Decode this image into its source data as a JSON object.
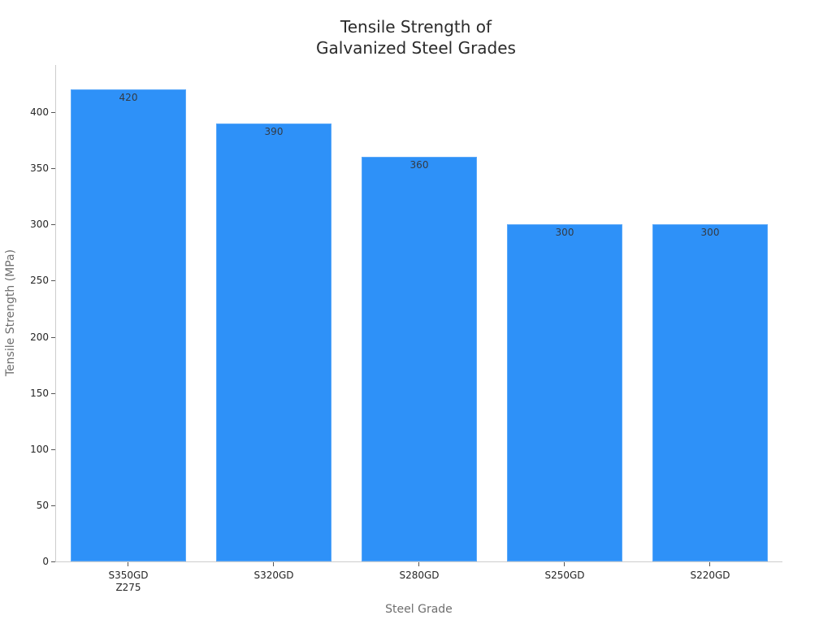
{
  "chart_data": {
    "type": "bar",
    "title": "Tensile Strength of Galvanized Steel Grades",
    "title_lines": [
      "Tensile Strength of",
      "Galvanized Steel Grades"
    ],
    "xlabel": "Steel Grade",
    "ylabel": "Tensile Strength (MPa)",
    "categories": [
      "S350GD Z275",
      "S320GD",
      "S280GD",
      "S250GD",
      "S220GD"
    ],
    "category_lines": [
      [
        "S350GD",
        "Z275"
      ],
      [
        "S320GD"
      ],
      [
        "S280GD"
      ],
      [
        "S250GD"
      ],
      [
        "S220GD"
      ]
    ],
    "values": [
      420,
      390,
      360,
      300,
      300
    ],
    "data_labels": [
      "420",
      "390",
      "360",
      "300",
      "300"
    ],
    "ylim": [
      0,
      440
    ],
    "yticks": [
      0,
      50,
      100,
      150,
      200,
      250,
      300,
      350,
      400
    ],
    "ytick_labels": [
      "0",
      "50",
      "100",
      "150",
      "200",
      "250",
      "300",
      "350",
      "400"
    ],
    "grid": false,
    "legend": null,
    "colors": {
      "bar": "#2e91f8",
      "bar_edge": "#5aa8f9",
      "axis": "#cccccc",
      "text": "#262626",
      "axis_label": "#6e6e6e"
    }
  }
}
